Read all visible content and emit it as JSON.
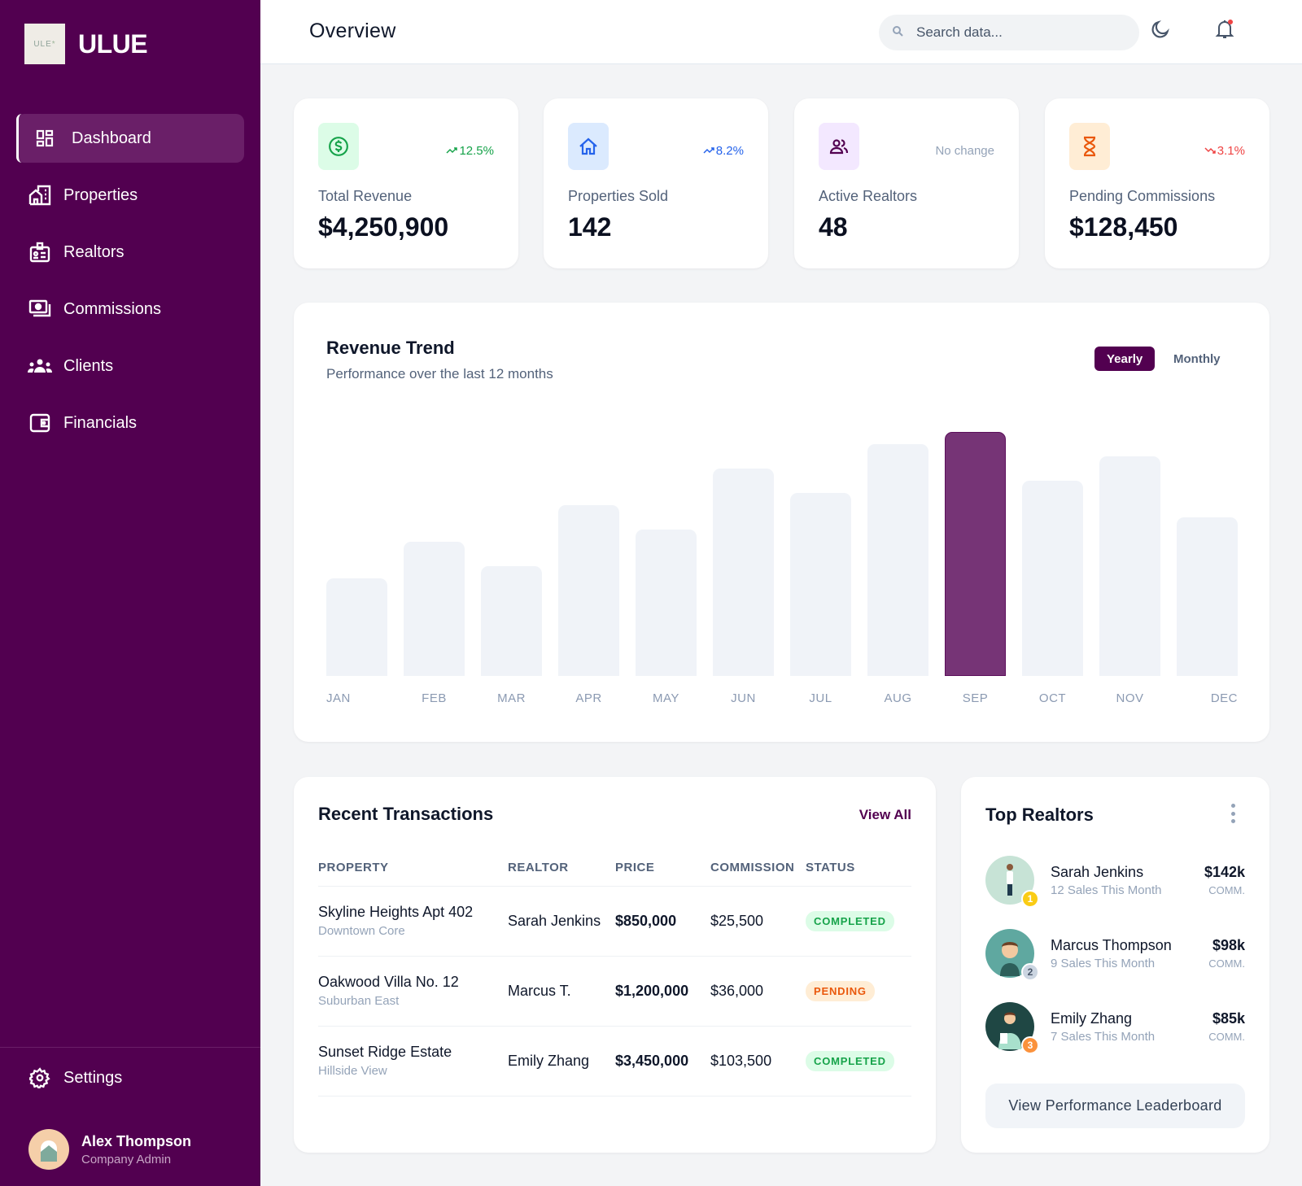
{
  "sidebar": {
    "brand": {
      "logo_text": "ULE",
      "name": "ULUE"
    },
    "items": [
      {
        "label": "Dashboard",
        "icon": "dashboard-icon",
        "active": true
      },
      {
        "label": "Properties",
        "icon": "buildings-icon"
      },
      {
        "label": "Realtors",
        "icon": "id-badge-icon"
      },
      {
        "label": "Commissions",
        "icon": "cash-icon"
      },
      {
        "label": "Clients",
        "icon": "group-icon"
      },
      {
        "label": "Financials",
        "icon": "wallet-icon"
      }
    ],
    "settings_label": "Settings",
    "user": {
      "name": "Alex Thompson",
      "role": "Company Admin"
    }
  },
  "header": {
    "title": "Overview",
    "search_placeholder": "Search data...",
    "icons": [
      "search-icon",
      "moon-icon",
      "bell-icon"
    ]
  },
  "stats": [
    {
      "label": "Total Revenue",
      "value": "$4,250,900",
      "delta": "12.5%",
      "trend": "up",
      "icon": "dollar-icon",
      "color": "#16a34a",
      "bg": "#dcfce7"
    },
    {
      "label": "Properties Sold",
      "value": "142",
      "delta": "8.2%",
      "trend": "up",
      "icon": "home-icon",
      "color": "#2563eb",
      "bg": "#dbeafe"
    },
    {
      "label": "Active Realtors",
      "value": "48",
      "delta": "No change",
      "trend": "flat",
      "icon": "users-icon",
      "color": "#520050",
      "bg": "#f3e8ff"
    },
    {
      "label": "Pending Commissions",
      "value": "$128,450",
      "delta": "3.1%",
      "trend": "down",
      "icon": "hourglass-icon",
      "color": "#ea580c",
      "bg": "#ffedd5"
    }
  ],
  "revenue": {
    "title": "Revenue Trend",
    "subtitle": "Performance over the last 12 months",
    "toggle_yearly": "Yearly",
    "toggle_monthly": "Monthly",
    "selected": "Yearly"
  },
  "chart_data": {
    "type": "bar",
    "title": "Revenue Trend",
    "subtitle": "Performance over the last 12 months",
    "categories": [
      "JAN",
      "FEB",
      "MAR",
      "APR",
      "MAY",
      "JUN",
      "JUL",
      "AUG",
      "SEP",
      "OCT",
      "NOV",
      "DEC"
    ],
    "values": [
      40,
      55,
      45,
      70,
      60,
      85,
      75,
      95,
      100,
      80,
      90,
      65
    ],
    "highlighted": "SEP",
    "xlabel": "",
    "ylabel": "",
    "ylim": [
      0,
      100
    ],
    "grid": false,
    "legend": "none",
    "colors": {
      "bar": "#f0f3f8",
      "highlight": "#763476"
    }
  },
  "transactions": {
    "title": "Recent Transactions",
    "view_all": "View All",
    "columns": [
      "PROPERTY",
      "REALTOR",
      "PRICE",
      "COMMISSION",
      "STATUS"
    ],
    "rows": [
      {
        "property": "Skyline Heights Apt 402",
        "location": "Downtown Core",
        "realtor": "Sarah Jenkins",
        "price": "$850,000",
        "commission": "$25,500",
        "status": "COMPLETED"
      },
      {
        "property": "Oakwood Villa No. 12",
        "location": "Suburban East",
        "realtor": "Marcus T.",
        "price": "$1,200,000",
        "commission": "$36,000",
        "status": "PENDING"
      },
      {
        "property": "Sunset Ridge Estate",
        "location": "Hillside View",
        "realtor": "Emily Zhang",
        "price": "$3,450,000",
        "commission": "$103,500",
        "status": "COMPLETED"
      }
    ]
  },
  "top_realtors": {
    "title": "Top Realtors",
    "items": [
      {
        "name": "Sarah Jenkins",
        "sales": "12 Sales This Month",
        "amount": "$142k",
        "unit": "COMM.",
        "rank": "1"
      },
      {
        "name": "Marcus Thompson",
        "sales": "9 Sales This Month",
        "amount": "$98k",
        "unit": "COMM.",
        "rank": "2"
      },
      {
        "name": "Emily Zhang",
        "sales": "7 Sales This Month",
        "amount": "$85k",
        "unit": "COMM.",
        "rank": "3"
      }
    ],
    "button": "View Performance Leaderboard"
  },
  "colors": {
    "brand": "#520050",
    "brand_active": "#6a1f68",
    "page_bg": "#f3f4f6"
  }
}
